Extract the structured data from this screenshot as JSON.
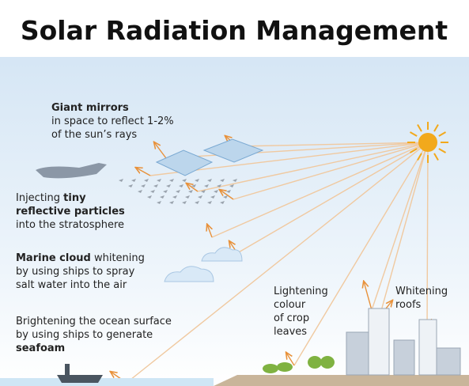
{
  "title": "Solar Radiation Management",
  "labels": [
    {
      "lines": [
        [
          {
            "t": "Giant mirrors",
            "b": true
          }
        ],
        [
          {
            "t": "in space to reflect 1-2%"
          }
        ],
        [
          {
            "t": "of the sun’s rays"
          }
        ]
      ]
    },
    {
      "lines": [
        [
          {
            "t": "Injecting "
          },
          {
            "t": "tiny",
            "b": true
          }
        ],
        [
          {
            "t": "reflective particles",
            "b": true
          }
        ],
        [
          {
            "t": "into the stratosphere"
          }
        ]
      ]
    },
    {
      "lines": [
        [
          {
            "t": "Marine cloud",
            "b": true
          },
          {
            "t": " whitening"
          }
        ],
        [
          {
            "t": "by using ships to spray"
          }
        ],
        [
          {
            "t": "salt water into the air"
          }
        ]
      ]
    },
    {
      "lines": [
        [
          {
            "t": "Brightening the ocean surface"
          }
        ],
        [
          {
            "t": "by using ships to generate"
          }
        ],
        [
          {
            "t": "seafoam",
            "b": true
          }
        ]
      ]
    },
    {
      "lines": [
        [
          {
            "t": "Lightening"
          }
        ],
        [
          {
            "t": "colour"
          }
        ],
        [
          {
            "t": "of crop"
          }
        ],
        [
          {
            "t": "leaves"
          }
        ]
      ]
    },
    {
      "lines": [
        [
          {
            "t": "Whitening"
          }
        ],
        [
          {
            "t": "roofs"
          }
        ]
      ]
    }
  ]
}
